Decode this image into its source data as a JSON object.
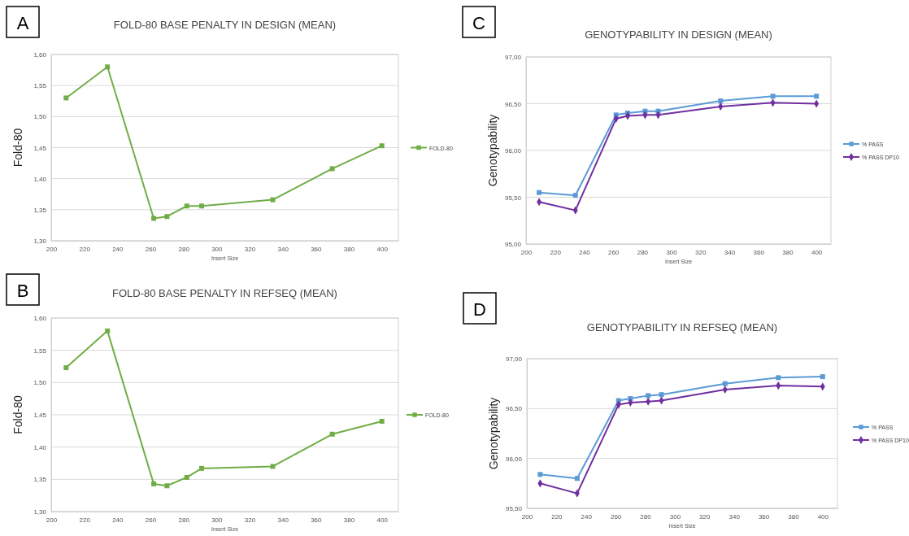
{
  "chart_data": [
    {
      "type": "line",
      "title": "FOLD-80 BASE PENALTY IN DESIGN (MEAN)",
      "xlabel": "Insert Size",
      "ylabel": "Fold-80",
      "annotations": [
        "A"
      ],
      "x": [
        209,
        234,
        262,
        270,
        282,
        291,
        334,
        370,
        400
      ],
      "series": [
        {
          "name": "FOLD-80",
          "color": "#70ad47",
          "marker": "square",
          "values": [
            1.53,
            1.58,
            1.336,
            1.339,
            1.356,
            1.356,
            1.366,
            1.416,
            1.453
          ]
        }
      ],
      "xlim": [
        200,
        410
      ],
      "xticks": [
        200,
        220,
        240,
        260,
        280,
        300,
        320,
        340,
        360,
        380,
        400
      ],
      "ylim": [
        1.3,
        1.6
      ],
      "yticks": [
        {
          "value": 1.3,
          "label": "1,30"
        },
        {
          "value": 1.35,
          "label": "1,35"
        },
        {
          "value": 1.4,
          "label": "1,40"
        },
        {
          "value": 1.45,
          "label": "1,45"
        },
        {
          "value": 1.5,
          "label": "1,50"
        },
        {
          "value": 1.55,
          "label": "1,55"
        },
        {
          "value": 1.6,
          "label": "1,60"
        }
      ],
      "grid": "y",
      "legend": "right"
    },
    {
      "type": "line",
      "title": "GENOTYPABILITY IN DESIGN (MEAN)",
      "xlabel": "Insert Size",
      "ylabel": "Genotypability",
      "annotations": [
        "C"
      ],
      "x": [
        209,
        234,
        262,
        270,
        282,
        291,
        334,
        370,
        400
      ],
      "series": [
        {
          "name": "% PASS",
          "color": "#5b9bd5",
          "marker": "square",
          "values": [
            95.55,
            95.52,
            96.38,
            96.4,
            96.42,
            96.42,
            96.53,
            96.58,
            96.58
          ]
        },
        {
          "name": "% PASS DP10",
          "color": "#7030a0",
          "marker": "diamond",
          "values": [
            95.45,
            95.36,
            96.34,
            96.37,
            96.38,
            96.38,
            96.47,
            96.51,
            96.5
          ]
        }
      ],
      "xlim": [
        200,
        410
      ],
      "xticks": [
        200,
        220,
        240,
        260,
        280,
        300,
        320,
        340,
        360,
        380,
        400
      ],
      "ylim": [
        95,
        97
      ],
      "yticks": [
        {
          "value": 95,
          "label": "95,00"
        },
        {
          "value": 95.5,
          "label": "95,50"
        },
        {
          "value": 96,
          "label": "96,00"
        },
        {
          "value": 96.5,
          "label": "96,50"
        },
        {
          "value": 97,
          "label": "97,00"
        }
      ],
      "grid": "y",
      "legend": "right"
    },
    {
      "type": "line",
      "title": "FOLD-80 BASE PENALTY IN REFSEQ (MEAN)",
      "xlabel": "Insert Size",
      "ylabel": "Fold-80",
      "annotations": [
        "B"
      ],
      "x": [
        209,
        234,
        262,
        270,
        282,
        291,
        334,
        370,
        400
      ],
      "series": [
        {
          "name": "FOLD-80",
          "color": "#70ad47",
          "marker": "square",
          "values": [
            1.523,
            1.58,
            1.343,
            1.34,
            1.353,
            1.367,
            1.37,
            1.42,
            1.44
          ]
        }
      ],
      "xlim": [
        200,
        410
      ],
      "xticks": [
        200,
        220,
        240,
        260,
        280,
        300,
        320,
        340,
        360,
        380,
        400
      ],
      "ylim": [
        1.3,
        1.6
      ],
      "yticks": [
        {
          "value": 1.3,
          "label": "1,30"
        },
        {
          "value": 1.35,
          "label": "1,35"
        },
        {
          "value": 1.4,
          "label": "1,40"
        },
        {
          "value": 1.45,
          "label": "1,45"
        },
        {
          "value": 1.5,
          "label": "1,50"
        },
        {
          "value": 1.55,
          "label": "1,55"
        },
        {
          "value": 1.6,
          "label": "1,60"
        }
      ],
      "grid": "y",
      "legend": "right"
    },
    {
      "type": "line",
      "title": "GENOTYPABILITY IN REFSEQ (MEAN)",
      "xlabel": "Insert Size",
      "ylabel": "Genotypability",
      "annotations": [
        "D"
      ],
      "x": [
        209,
        234,
        262,
        270,
        282,
        291,
        334,
        370,
        400
      ],
      "series": [
        {
          "name": "% PASS",
          "color": "#5b9bd5",
          "marker": "square",
          "values": [
            95.84,
            95.8,
            96.58,
            96.6,
            96.63,
            96.64,
            96.75,
            96.81,
            96.82
          ]
        },
        {
          "name": "% PASS DP10",
          "color": "#7030a0",
          "marker": "diamond",
          "values": [
            95.75,
            95.65,
            96.54,
            96.56,
            96.57,
            96.58,
            96.69,
            96.73,
            96.72
          ]
        }
      ],
      "xlim": [
        200,
        410
      ],
      "xticks": [
        200,
        220,
        240,
        260,
        280,
        300,
        320,
        340,
        360,
        380,
        400
      ],
      "ylim": [
        95.5,
        97
      ],
      "yticks": [
        {
          "value": 95.5,
          "label": "95,50"
        },
        {
          "value": 96,
          "label": "96,00"
        },
        {
          "value": 96.5,
          "label": "96,50"
        },
        {
          "value": 97,
          "label": "97,00"
        }
      ],
      "grid": "y",
      "legend": "right"
    }
  ]
}
